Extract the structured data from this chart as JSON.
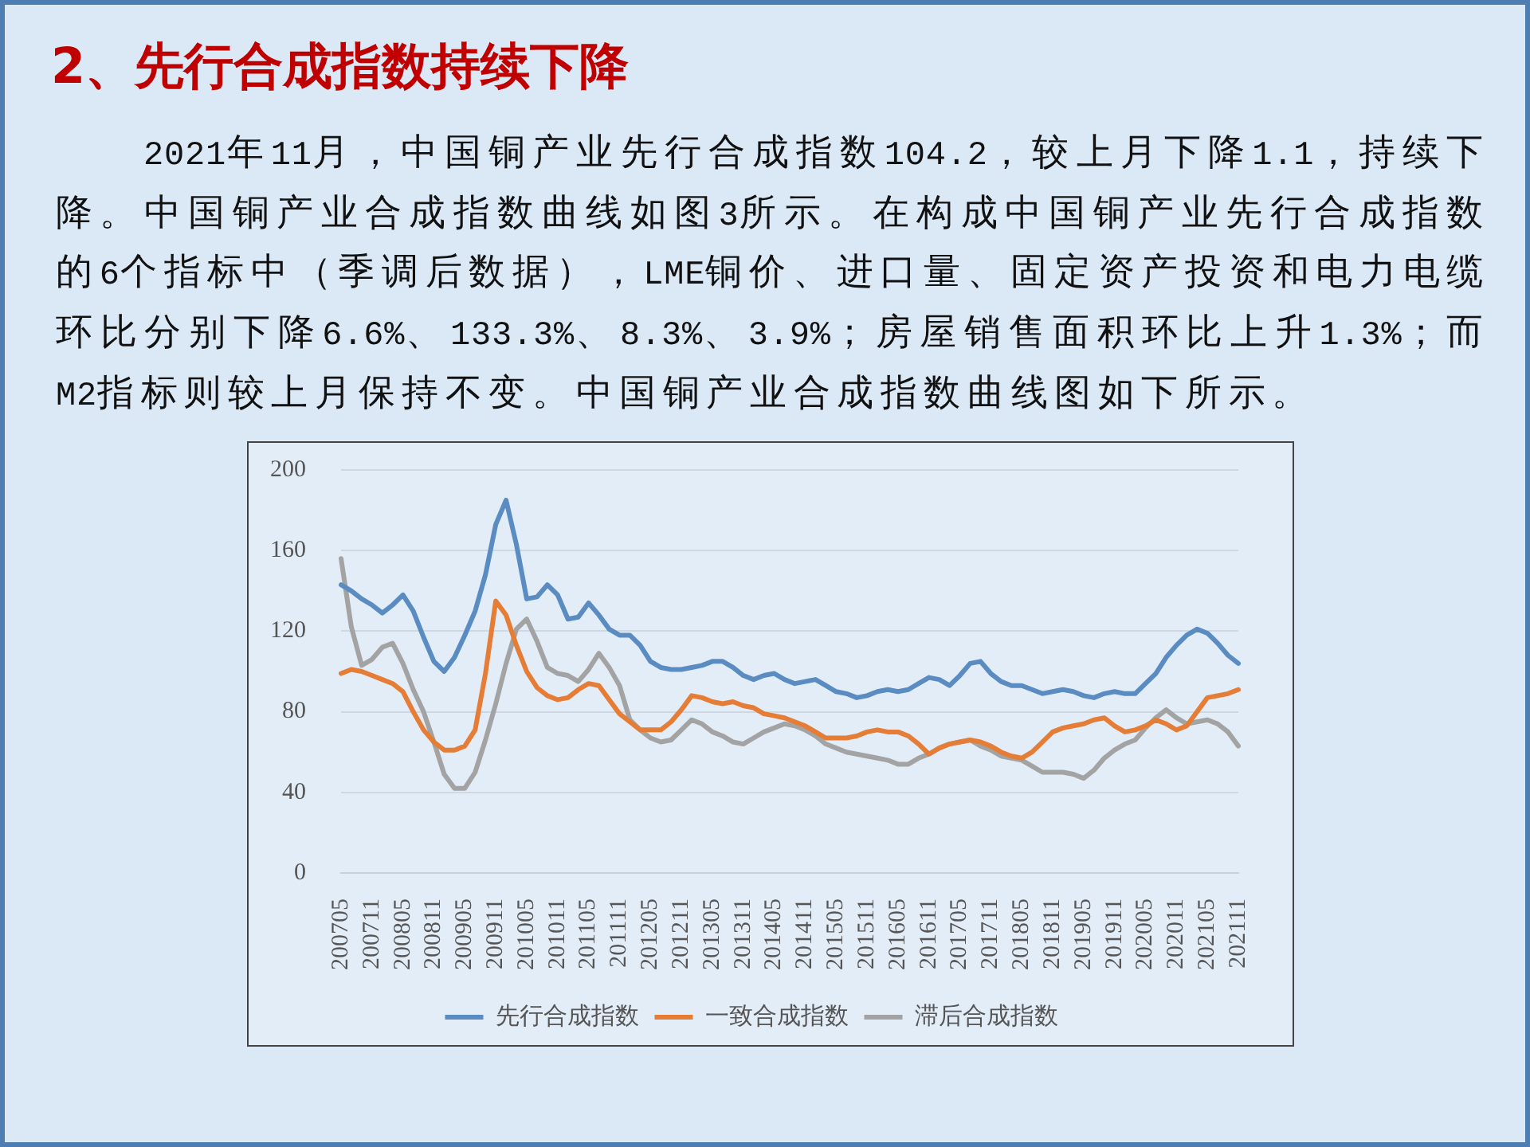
{
  "chart_data": {
    "type": "line",
    "title": "2、先行合成指数持续下降",
    "annotations": [
      "2021年11月，中国铜产业先行合成指数104.2，较上月下降1.1，持续下降。中国铜产业合成指数曲线如图3所示。在构成中国铜产业先行合成指数的6个指标中（季调后数据），LME铜价、进口量、固定资产投资和电力电缆环比分别下降6.6%、133.3%、8.3%、3.9%；房屋销售面积环比上升1.3%；而M2指标则较上月保持不变。中国铜产业合成指数曲线图如下所示。"
    ],
    "categories": [
      "200705",
      null,
      null,
      "200711",
      null,
      null,
      "200805",
      null,
      null,
      "200811",
      null,
      null,
      "200905",
      null,
      null,
      "200911",
      null,
      null,
      "201005",
      null,
      null,
      "201011",
      null,
      null,
      "201105",
      null,
      null,
      "201111",
      null,
      null,
      "201205",
      null,
      null,
      "201211",
      null,
      null,
      "201305",
      null,
      null,
      "201311",
      null,
      null,
      "201405",
      null,
      null,
      "201411",
      null,
      null,
      "201505",
      null,
      null,
      "201511",
      null,
      null,
      "201605",
      null,
      null,
      "201611",
      null,
      null,
      "201705",
      null,
      null,
      "201711",
      null,
      null,
      "201805",
      null,
      null,
      "201811",
      null,
      null,
      "201905",
      null,
      null,
      "201911",
      null,
      null,
      "202005",
      null,
      null,
      "202011",
      null,
      null,
      "202105",
      null,
      null,
      "202111"
    ],
    "series": [
      {
        "name": "先行合成指数",
        "color": "#5a8cc2",
        "values": [
          143,
          140,
          136,
          133,
          129,
          133,
          138,
          130,
          117,
          105,
          100,
          107,
          118,
          130,
          148,
          173,
          185,
          163,
          136,
          137,
          143,
          138,
          126,
          127,
          134,
          128,
          121,
          118,
          118,
          113,
          105,
          102,
          101,
          101,
          102,
          103,
          105,
          105,
          102,
          98,
          96,
          98,
          99,
          96,
          94,
          95,
          96,
          93,
          90,
          89,
          87,
          88,
          90,
          91,
          90,
          91,
          94,
          97,
          96,
          93,
          98,
          104,
          105,
          99,
          95,
          93,
          93,
          91,
          89,
          90,
          91,
          90,
          88,
          87,
          89,
          90,
          89,
          89,
          94,
          99,
          107,
          113,
          118,
          121,
          119,
          114,
          108,
          104
        ]
      },
      {
        "name": "一致合成指数",
        "color": "#e57d36",
        "values": [
          99,
          101,
          100,
          98,
          96,
          94,
          90,
          80,
          71,
          65,
          61,
          61,
          63,
          71,
          99,
          135,
          128,
          113,
          100,
          92,
          88,
          86,
          87,
          91,
          94,
          93,
          86,
          79,
          75,
          71,
          71,
          71,
          75,
          81,
          88,
          87,
          85,
          84,
          85,
          83,
          82,
          79,
          78,
          77,
          75,
          73,
          70,
          67,
          67,
          67,
          68,
          70,
          71,
          70,
          70,
          68,
          64,
          59,
          62,
          64,
          65,
          66,
          65,
          63,
          60,
          58,
          57,
          60,
          65,
          70,
          72,
          73,
          74,
          76,
          77,
          73,
          70,
          71,
          73,
          76,
          74,
          71,
          73,
          80,
          87,
          88,
          89,
          91
        ]
      },
      {
        "name": "滞后合成指数",
        "color": "#a3a3a3",
        "values": [
          156,
          122,
          103,
          106,
          112,
          114,
          104,
          91,
          80,
          65,
          49,
          42,
          42,
          50,
          66,
          84,
          104,
          121,
          126,
          115,
          102,
          99,
          98,
          95,
          101,
          109,
          102,
          93,
          76,
          71,
          67,
          65,
          66,
          71,
          76,
          74,
          70,
          68,
          65,
          64,
          67,
          70,
          72,
          74,
          73,
          71,
          68,
          64,
          62,
          60,
          59,
          58,
          57,
          56,
          54,
          54,
          57,
          59,
          62,
          64,
          65,
          66,
          63,
          61,
          58,
          57,
          56,
          53,
          50,
          50,
          50,
          49,
          47,
          51,
          57,
          61,
          64,
          66,
          72,
          77,
          81,
          77,
          74,
          75,
          76,
          74,
          70,
          63
        ]
      }
    ],
    "ylim": [
      0,
      200
    ],
    "yticks": [
      0,
      40,
      80,
      120,
      160,
      200
    ],
    "grid": "y",
    "legend": "bottom",
    "marker": "none"
  }
}
